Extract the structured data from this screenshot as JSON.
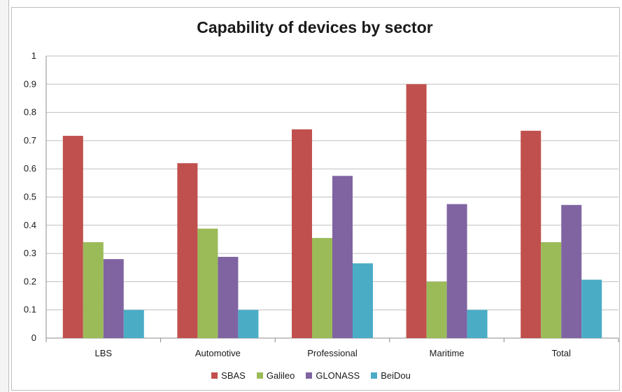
{
  "chart_data": {
    "type": "bar",
    "title": "Capability of devices by sector",
    "categories": [
      "LBS",
      "Automotive",
      "Professional",
      "Maritime",
      "Total"
    ],
    "series": [
      {
        "name": "SBAS",
        "color": "#c0504d",
        "values": [
          0.717,
          0.62,
          0.74,
          0.9,
          0.735
        ]
      },
      {
        "name": "Galileo",
        "color": "#9bbb59",
        "values": [
          0.34,
          0.388,
          0.355,
          0.2,
          0.34
        ]
      },
      {
        "name": "GLONASS",
        "color": "#8064a2",
        "values": [
          0.28,
          0.288,
          0.575,
          0.475,
          0.472
        ]
      },
      {
        "name": "BeiDou",
        "color": "#4bacc6",
        "values": [
          0.1,
          0.1,
          0.265,
          0.1,
          0.207
        ]
      }
    ],
    "y_ticks": [
      "0",
      "0.1",
      "0.2",
      "0.3",
      "0.4",
      "0.5",
      "0.6",
      "0.7",
      "0.8",
      "0.9",
      "1"
    ],
    "ylim": [
      0,
      1
    ],
    "grid": true,
    "legend_position": "bottom"
  }
}
